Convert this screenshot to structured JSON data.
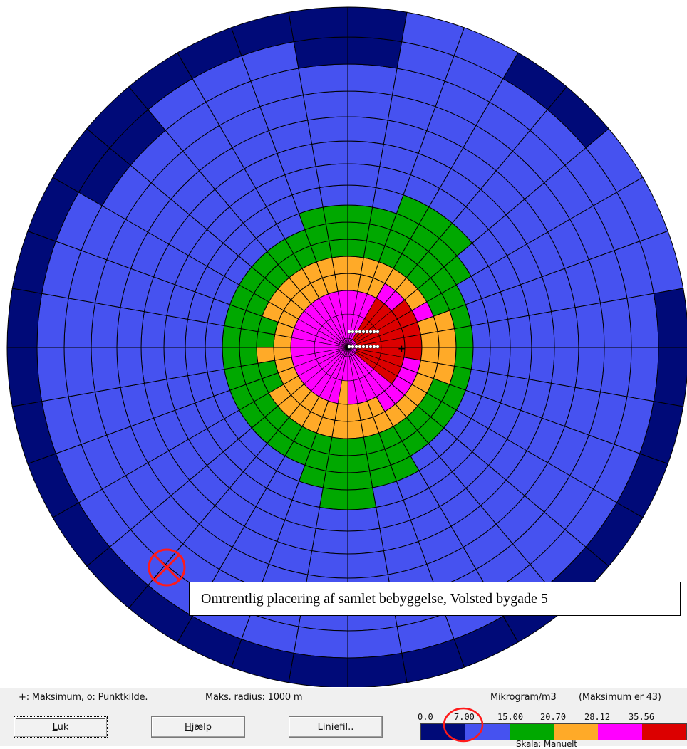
{
  "colors": {
    "ring_outer": "#000a78",
    "base": "#4652f0",
    "green": "#00a800",
    "orange": "#ffaa28",
    "magenta": "#ff00ff",
    "red": "#dc0000",
    "grid": "#000000",
    "marker_red": "#ff1a1a"
  },
  "annotation": {
    "label": "Omtrentlig placering af samlet bebyggelse, Volsted bygade 5",
    "marker_icon": "circled-x-icon"
  },
  "status": {
    "legend_symbols": "+: Maksimum, o: Punktkilde.",
    "max_radius": "Maks. radius: 1000 m",
    "unit": "Mikrogram/m3",
    "maximum": "(Maksimum er 43)",
    "scale": "Skala: Manuelt"
  },
  "buttons": {
    "close": "Luk",
    "help": "Hjælp",
    "linefile": "Liniefil.."
  },
  "legend": {
    "ticks": [
      "0.0",
      "7.00",
      "15.00",
      "20.70",
      "28.12",
      "35.56"
    ],
    "colors": [
      "#000a78",
      "#4652f0",
      "#00a800",
      "#ffaa28",
      "#ff00ff",
      "#dc0000"
    ],
    "highlighted_tick": "7.00"
  }
}
